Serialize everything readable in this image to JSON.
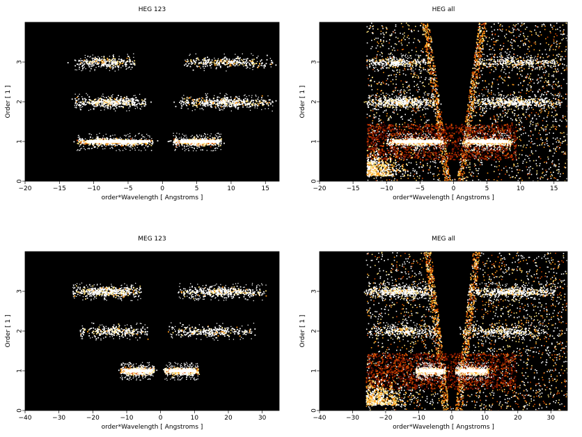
{
  "figure": "",
  "chart_data": [
    {
      "type": "heatmap",
      "title": "HEG 123",
      "xlabel": "order*Wavelength [ Angstroms ]",
      "ylabel": "Order [ 1 ]",
      "xlim": [
        -20,
        17
      ],
      "ylim": [
        0,
        4
      ],
      "xticks": [
        -20,
        -15,
        -10,
        -5,
        0,
        5,
        10,
        15
      ],
      "yticks": [
        0,
        1,
        2,
        3
      ],
      "background": "#000000",
      "colormap": [
        "#3a0000",
        "#8b1a00",
        "#d84a00",
        "#ff9a1a",
        "#ffe27a",
        "#ffffff"
      ],
      "bands": [
        {
          "order": 1,
          "x_ranges": [
            [
              -12.5,
              -1.5
            ],
            [
              1.5,
              8.5
            ]
          ],
          "intensity": "high"
        },
        {
          "order": 2,
          "x_ranges": [
            [
              -13,
              -2.5
            ],
            [
              2.5,
              16
            ]
          ],
          "intensity": "medium"
        },
        {
          "order": 3,
          "x_ranges": [
            [
              -13,
              -4
            ],
            [
              3,
              16
            ]
          ],
          "intensity": "low"
        }
      ],
      "background_events": false
    },
    {
      "type": "heatmap",
      "title": "HEG all",
      "xlabel": "order*Wavelength [ Angstroms ]",
      "ylabel": "Order [ 1 ]",
      "xlim": [
        -20,
        17
      ],
      "ylim": [
        0,
        4
      ],
      "xticks": [
        -20,
        -15,
        -10,
        -5,
        0,
        5,
        10,
        15
      ],
      "yticks": [
        0,
        1,
        2,
        3
      ],
      "background": "#000000",
      "colormap": [
        "#3a0000",
        "#8b1a00",
        "#d84a00",
        "#ff9a1a",
        "#ffe27a",
        "#ffffff"
      ],
      "bands": [
        {
          "order": 1,
          "x_ranges": [
            [
              -10,
              -1.5
            ],
            [
              1.5,
              8.5
            ]
          ],
          "intensity": "high"
        },
        {
          "order": 2,
          "x_ranges": [
            [
              -13,
              -2.5
            ],
            [
              2.5,
              16
            ]
          ],
          "intensity": "medium"
        },
        {
          "order": 3,
          "x_ranges": [
            [
              -13,
              -4
            ],
            [
              3,
              16
            ]
          ],
          "intensity": "low"
        }
      ],
      "background_events": true,
      "data_edge_left_x": -13
    },
    {
      "type": "heatmap",
      "title": "MEG 123",
      "xlabel": "order*Wavelength [ Angstroms ]",
      "ylabel": "Order [ 1 ]",
      "xlim": [
        -40,
        35
      ],
      "ylim": [
        0,
        4
      ],
      "xticks": [
        -40,
        -30,
        -20,
        -10,
        0,
        10,
        20,
        30
      ],
      "yticks": [
        0,
        1,
        2,
        3
      ],
      "background": "#000000",
      "colormap": [
        "#3a0000",
        "#8b1a00",
        "#d84a00",
        "#ff9a1a",
        "#ffe27a",
        "#ffffff"
      ],
      "bands": [
        {
          "order": 1,
          "x_ranges": [
            [
              -12,
              -2
            ],
            [
              1,
              11
            ]
          ],
          "intensity": "high"
        },
        {
          "order": 2,
          "x_ranges": [
            [
              -24,
              -4
            ],
            [
              2,
              28
            ]
          ],
          "intensity": "low"
        },
        {
          "order": 3,
          "x_ranges": [
            [
              -26,
              -6
            ],
            [
              5,
              31
            ]
          ],
          "intensity": "medium"
        }
      ],
      "background_events": false
    },
    {
      "type": "heatmap",
      "title": "MEG all",
      "xlabel": "order*Wavelength [ Angstroms ]",
      "ylabel": "Order [ 1 ]",
      "xlim": [
        -40,
        35
      ],
      "ylim": [
        0,
        4
      ],
      "xticks": [
        -40,
        -30,
        -20,
        -10,
        0,
        10,
        20,
        30
      ],
      "yticks": [
        0,
        1,
        2,
        3
      ],
      "background": "#000000",
      "colormap": [
        "#3a0000",
        "#8b1a00",
        "#d84a00",
        "#ff9a1a",
        "#ffe27a",
        "#ffffff"
      ],
      "bands": [
        {
          "order": 1,
          "x_ranges": [
            [
              -11,
              -2
            ],
            [
              1,
              11
            ]
          ],
          "intensity": "high"
        },
        {
          "order": 2,
          "x_ranges": [
            [
              -25,
              -4
            ],
            [
              2,
              28
            ]
          ],
          "intensity": "low"
        },
        {
          "order": 3,
          "x_ranges": [
            [
              -26,
              -6
            ],
            [
              5,
              31
            ]
          ],
          "intensity": "medium"
        }
      ],
      "background_events": true,
      "data_edge_left_x": -26
    }
  ]
}
